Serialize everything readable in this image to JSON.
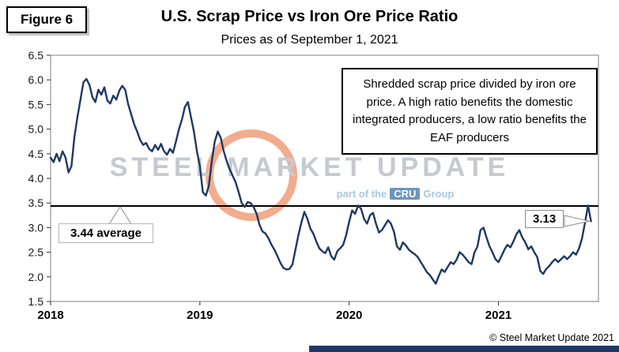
{
  "figure_label": "Figure 6",
  "header": {
    "title": "U.S. Scrap Price vs Iron Ore Price Ratio",
    "subtitle": "Prices as of September 1, 2021"
  },
  "annotation": {
    "text": "Shredded scrap price divided by iron ore price. A high ratio benefits the domestic integrated producers, a low ratio benefits the EAF producers"
  },
  "callouts": {
    "average_label": "3.44 average",
    "last_label": "3.13"
  },
  "watermark": {
    "text": "STEEL MARKET UPDATE",
    "tagline_pre": "part of the",
    "cru": "CRU",
    "tagline_post": "Group",
    "logo_icon": "smu-ring-logo"
  },
  "footer": {
    "copyright": "© Steel Market Update 2021"
  },
  "colors": {
    "series_line": "#1f3864",
    "average_line": "#000000",
    "footer_bar": "#1f3864",
    "watermark_text": "#c5cad1",
    "watermark_blue": "#a9c7e2",
    "cru_box": "#6d94bd",
    "logo_orange": "#e55a1d"
  },
  "chart_data": {
    "type": "line",
    "title": "U.S. Scrap Price vs Iron Ore Price Ratio",
    "subtitle": "Prices as of September 1, 2021",
    "xlabel": "",
    "ylabel": "",
    "xlim": [
      2018.0,
      2021.67
    ],
    "ylim": [
      1.5,
      6.5
    ],
    "x_ticks": [
      2018,
      2019,
      2020,
      2021
    ],
    "y_ticks": [
      1.5,
      2.0,
      2.5,
      3.0,
      3.5,
      4.0,
      4.5,
      5.0,
      5.5,
      6.0,
      6.5
    ],
    "grid": false,
    "legend": false,
    "average": 3.44,
    "last_value": 3.13,
    "series": [
      {
        "name": "Shredded scrap price / iron ore price ratio",
        "points": [
          [
            2018.0,
            4.42
          ],
          [
            2018.02,
            4.33
          ],
          [
            2018.04,
            4.5
          ],
          [
            2018.06,
            4.35
          ],
          [
            2018.08,
            4.55
          ],
          [
            2018.1,
            4.42
          ],
          [
            2018.12,
            4.12
          ],
          [
            2018.14,
            4.25
          ],
          [
            2018.16,
            4.85
          ],
          [
            2018.18,
            5.25
          ],
          [
            2018.2,
            5.6
          ],
          [
            2018.22,
            5.95
          ],
          [
            2018.24,
            6.02
          ],
          [
            2018.26,
            5.9
          ],
          [
            2018.28,
            5.65
          ],
          [
            2018.3,
            5.55
          ],
          [
            2018.32,
            5.8
          ],
          [
            2018.34,
            5.7
          ],
          [
            2018.36,
            5.85
          ],
          [
            2018.38,
            5.58
          ],
          [
            2018.4,
            5.52
          ],
          [
            2018.42,
            5.68
          ],
          [
            2018.44,
            5.6
          ],
          [
            2018.46,
            5.78
          ],
          [
            2018.48,
            5.88
          ],
          [
            2018.5,
            5.8
          ],
          [
            2018.52,
            5.5
          ],
          [
            2018.54,
            5.3
          ],
          [
            2018.56,
            5.1
          ],
          [
            2018.58,
            4.95
          ],
          [
            2018.6,
            4.78
          ],
          [
            2018.62,
            4.68
          ],
          [
            2018.64,
            4.72
          ],
          [
            2018.66,
            4.6
          ],
          [
            2018.68,
            4.55
          ],
          [
            2018.7,
            4.68
          ],
          [
            2018.72,
            4.58
          ],
          [
            2018.74,
            4.7
          ],
          [
            2018.76,
            4.55
          ],
          [
            2018.78,
            4.48
          ],
          [
            2018.8,
            4.6
          ],
          [
            2018.82,
            4.52
          ],
          [
            2018.84,
            4.75
          ],
          [
            2018.86,
            5.0
          ],
          [
            2018.88,
            5.2
          ],
          [
            2018.9,
            5.45
          ],
          [
            2018.92,
            5.55
          ],
          [
            2018.94,
            5.25
          ],
          [
            2018.96,
            4.95
          ],
          [
            2018.98,
            4.55
          ],
          [
            2019.0,
            4.25
          ],
          [
            2019.02,
            3.72
          ],
          [
            2019.04,
            3.65
          ],
          [
            2019.06,
            3.85
          ],
          [
            2019.08,
            4.35
          ],
          [
            2019.1,
            4.75
          ],
          [
            2019.12,
            4.95
          ],
          [
            2019.14,
            4.82
          ],
          [
            2019.16,
            4.55
          ],
          [
            2019.18,
            4.35
          ],
          [
            2019.2,
            4.18
          ],
          [
            2019.22,
            4.05
          ],
          [
            2019.24,
            3.92
          ],
          [
            2019.26,
            3.72
          ],
          [
            2019.28,
            3.5
          ],
          [
            2019.3,
            3.42
          ],
          [
            2019.32,
            3.52
          ],
          [
            2019.34,
            3.5
          ],
          [
            2019.36,
            3.42
          ],
          [
            2019.38,
            3.28
          ],
          [
            2019.4,
            3.05
          ],
          [
            2019.42,
            2.92
          ],
          [
            2019.44,
            2.88
          ],
          [
            2019.46,
            2.78
          ],
          [
            2019.48,
            2.65
          ],
          [
            2019.5,
            2.55
          ],
          [
            2019.52,
            2.42
          ],
          [
            2019.54,
            2.28
          ],
          [
            2019.56,
            2.18
          ],
          [
            2019.58,
            2.15
          ],
          [
            2019.6,
            2.16
          ],
          [
            2019.62,
            2.25
          ],
          [
            2019.64,
            2.55
          ],
          [
            2019.66,
            2.85
          ],
          [
            2019.68,
            3.1
          ],
          [
            2019.7,
            3.32
          ],
          [
            2019.72,
            3.18
          ],
          [
            2019.74,
            2.98
          ],
          [
            2019.76,
            2.88
          ],
          [
            2019.78,
            2.72
          ],
          [
            2019.8,
            2.58
          ],
          [
            2019.82,
            2.52
          ],
          [
            2019.84,
            2.48
          ],
          [
            2019.86,
            2.6
          ],
          [
            2019.88,
            2.42
          ],
          [
            2019.9,
            2.35
          ],
          [
            2019.92,
            2.52
          ],
          [
            2019.94,
            2.58
          ],
          [
            2019.96,
            2.65
          ],
          [
            2019.98,
            2.85
          ],
          [
            2020.0,
            3.12
          ],
          [
            2020.02,
            3.35
          ],
          [
            2020.04,
            3.28
          ],
          [
            2020.06,
            3.45
          ],
          [
            2020.08,
            3.38
          ],
          [
            2020.1,
            3.18
          ],
          [
            2020.12,
            3.08
          ],
          [
            2020.14,
            3.25
          ],
          [
            2020.16,
            3.3
          ],
          [
            2020.18,
            3.08
          ],
          [
            2020.2,
            2.9
          ],
          [
            2020.22,
            2.95
          ],
          [
            2020.24,
            3.05
          ],
          [
            2020.26,
            3.15
          ],
          [
            2020.28,
            3.08
          ],
          [
            2020.3,
            2.92
          ],
          [
            2020.32,
            2.62
          ],
          [
            2020.34,
            2.55
          ],
          [
            2020.36,
            2.7
          ],
          [
            2020.38,
            2.64
          ],
          [
            2020.4,
            2.55
          ],
          [
            2020.42,
            2.5
          ],
          [
            2020.44,
            2.46
          ],
          [
            2020.46,
            2.4
          ],
          [
            2020.48,
            2.3
          ],
          [
            2020.5,
            2.2
          ],
          [
            2020.52,
            2.1
          ],
          [
            2020.54,
            2.04
          ],
          [
            2020.56,
            1.95
          ],
          [
            2020.58,
            1.86
          ],
          [
            2020.6,
            2.02
          ],
          [
            2020.62,
            2.15
          ],
          [
            2020.64,
            2.1
          ],
          [
            2020.66,
            2.2
          ],
          [
            2020.68,
            2.3
          ],
          [
            2020.7,
            2.26
          ],
          [
            2020.72,
            2.35
          ],
          [
            2020.74,
            2.5
          ],
          [
            2020.76,
            2.45
          ],
          [
            2020.78,
            2.38
          ],
          [
            2020.8,
            2.3
          ],
          [
            2020.82,
            2.26
          ],
          [
            2020.84,
            2.5
          ],
          [
            2020.86,
            2.62
          ],
          [
            2020.88,
            2.95
          ],
          [
            2020.9,
            3.0
          ],
          [
            2020.92,
            2.8
          ],
          [
            2020.94,
            2.62
          ],
          [
            2020.96,
            2.5
          ],
          [
            2020.98,
            2.36
          ],
          [
            2021.0,
            2.3
          ],
          [
            2021.02,
            2.42
          ],
          [
            2021.04,
            2.55
          ],
          [
            2021.06,
            2.65
          ],
          [
            2021.08,
            2.6
          ],
          [
            2021.1,
            2.72
          ],
          [
            2021.12,
            2.86
          ],
          [
            2021.14,
            2.95
          ],
          [
            2021.16,
            2.8
          ],
          [
            2021.18,
            2.7
          ],
          [
            2021.2,
            2.56
          ],
          [
            2021.22,
            2.62
          ],
          [
            2021.24,
            2.5
          ],
          [
            2021.26,
            2.4
          ],
          [
            2021.28,
            2.12
          ],
          [
            2021.3,
            2.06
          ],
          [
            2021.32,
            2.16
          ],
          [
            2021.34,
            2.22
          ],
          [
            2021.36,
            2.3
          ],
          [
            2021.38,
            2.36
          ],
          [
            2021.4,
            2.3
          ],
          [
            2021.42,
            2.36
          ],
          [
            2021.44,
            2.42
          ],
          [
            2021.46,
            2.36
          ],
          [
            2021.48,
            2.42
          ],
          [
            2021.5,
            2.5
          ],
          [
            2021.52,
            2.45
          ],
          [
            2021.54,
            2.58
          ],
          [
            2021.56,
            2.78
          ],
          [
            2021.58,
            3.1
          ],
          [
            2021.6,
            3.45
          ],
          [
            2021.62,
            3.13
          ]
        ]
      }
    ]
  }
}
